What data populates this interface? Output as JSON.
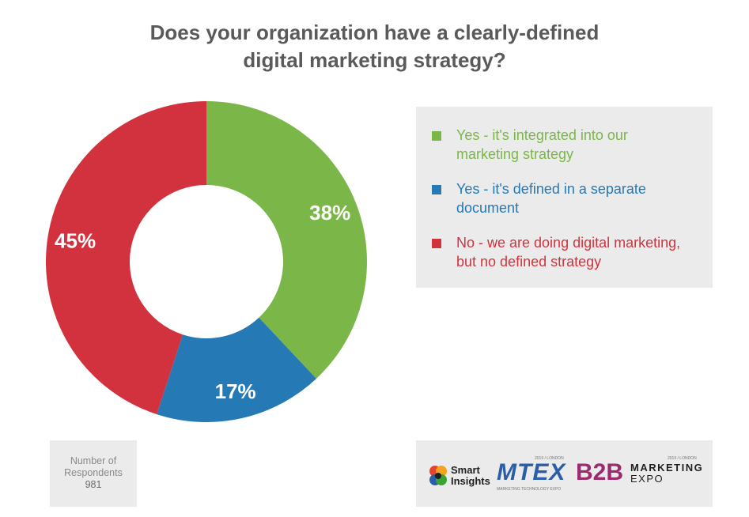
{
  "title_lines": [
    "Does your organization have a clearly-defined",
    "digital marketing strategy?"
  ],
  "chart_data": {
    "type": "pie",
    "donut": true,
    "categories": [
      "Yes - it's integrated into our marketing strategy",
      "Yes - it's defined in a separate document",
      "No - we are doing digital marketing, but no defined strategy"
    ],
    "values": [
      38,
      17,
      45
    ],
    "labels": [
      "38%",
      "17%",
      "45%"
    ],
    "colors": [
      "#7ab648",
      "#2579b4",
      "#d2323e"
    ],
    "legend_position": "right"
  },
  "legend": [
    {
      "lines": [
        "Yes - it's integrated into our",
        "marketing strategy"
      ],
      "color": "#7ab648"
    },
    {
      "lines": [
        "Yes - it's defined in a separate",
        "document"
      ],
      "color": "#2579b4"
    },
    {
      "lines": [
        "No - we are doing digital marketing,",
        "but no defined strategy"
      ],
      "color": "#d2323e"
    }
  ],
  "respondents": {
    "label_lines": [
      "Number of",
      "Respondents"
    ],
    "value": "981"
  },
  "logos": {
    "smart_insights": [
      "Smart",
      "Insights"
    ],
    "mtex": {
      "name": "MTEX",
      "tag": "2019 / LONDON",
      "sub": "MARKETING TECHNOLOGY EXPO"
    },
    "b2b": {
      "name": "B2B",
      "tag": "2019 / LONDON",
      "line1": "MARKETING",
      "line2": "EXPO"
    }
  }
}
